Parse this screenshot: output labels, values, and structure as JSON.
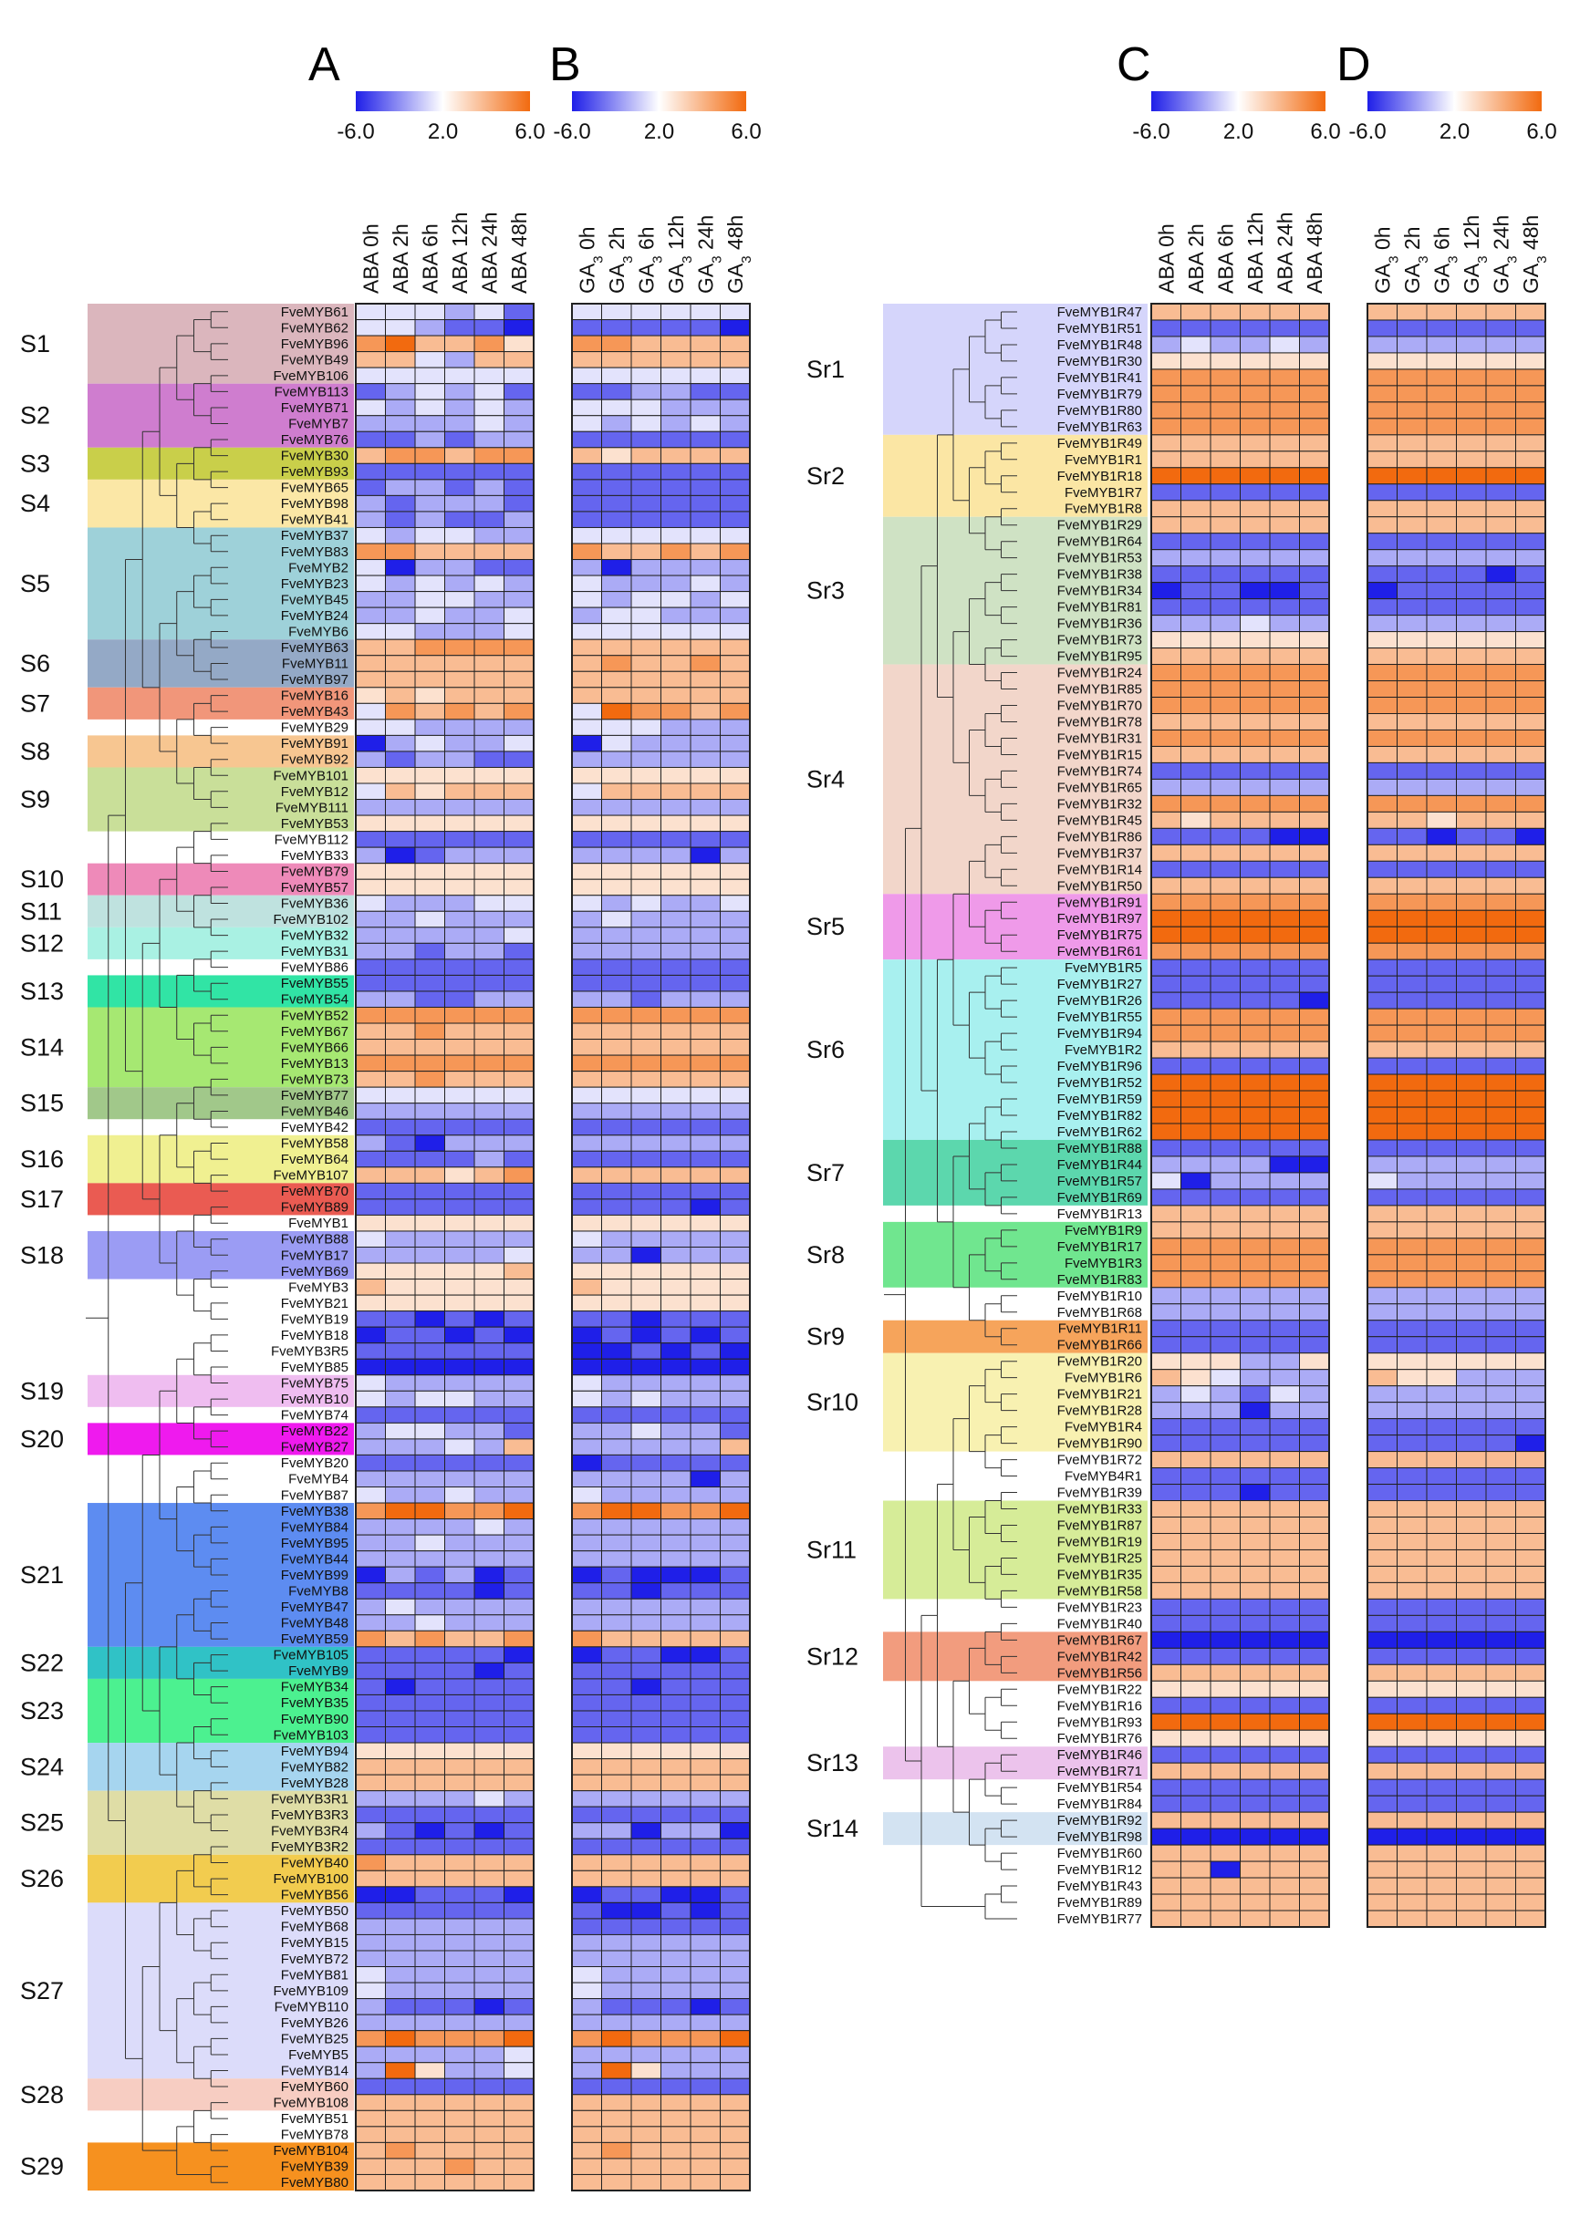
{
  "figure": {
    "panel_labels": [
      "A",
      "B",
      "C",
      "D"
    ],
    "legend_ticks": [
      "-6.0",
      "2.0",
      "6.0"
    ],
    "colors": {
      "low": "#1f1fe8",
      "mid": "#ffffff",
      "high": "#f26a0f",
      "missing": "#7f7f7f",
      "grid": "#222222"
    }
  },
  "chart_data": {
    "type": "heatmap",
    "scale": {
      "min": -6.0,
      "mid": 2.0,
      "max": 6.0
    },
    "left": {
      "row_labels": [
        "FveMYB61",
        "FveMYB62",
        "FveMYB96",
        "FveMYB49",
        "FveMYB106",
        "FveMYB113",
        "FveMYB71",
        "FveMYB7",
        "FveMYB76",
        "FveMYB30",
        "FveMYB93",
        "FveMYB65",
        "FveMYB98",
        "FveMYB41",
        "FveMYB37",
        "FveMYB83",
        "FveMYB2",
        "FveMYB23",
        "FveMYB45",
        "FveMYB24",
        "FveMYB6",
        "FveMYB63",
        "FveMYB11",
        "FveMYB97",
        "FveMYB16",
        "FveMYB43",
        "FveMYB29",
        "FveMYB91",
        "FveMYB92",
        "FveMYB101",
        "FveMYB12",
        "FveMYB111",
        "FveMYB53",
        "FveMYB112",
        "FveMYB33",
        "FveMYB79",
        "FveMYB57",
        "FveMYB36",
        "FveMYB102",
        "FveMYB32",
        "FveMYB31",
        "FveMYB86",
        "FveMYB55",
        "FveMYB54",
        "FveMYB52",
        "FveMYB67",
        "FveMYB66",
        "FveMYB13",
        "FveMYB73",
        "FveMYB77",
        "FveMYB46",
        "FveMYB42",
        "FveMYB58",
        "FveMYB64",
        "FveMYB107",
        "FveMYB70",
        "FveMYB89",
        "FveMYB1",
        "FveMYB88",
        "FveMYB17",
        "FveMYB69",
        "FveMYB3",
        "FveMYB21",
        "FveMYB19",
        "FveMYB18",
        "FveMYB3R5",
        "FveMYB85",
        "FveMYB75",
        "FveMYB10",
        "FveMYB74",
        "FveMYB22",
        "FveMYB27",
        "FveMYB20",
        "FveMYB4",
        "FveMYB87",
        "FveMYB38",
        "FveMYB84",
        "FveMYB95",
        "FveMYB44",
        "FveMYB99",
        "FveMYB8",
        "FveMYB47",
        "FveMYB48",
        "FveMYB59",
        "FveMYB105",
        "FveMYB9",
        "FveMYB34",
        "FveMYB35",
        "FveMYB90",
        "FveMYB103",
        "FveMYB94",
        "FveMYB82",
        "FveMYB28",
        "FveMYB3R1",
        "FveMYB3R3",
        "FveMYB3R4",
        "FveMYB3R2",
        "FveMYB40",
        "FveMYB100",
        "FveMYB56",
        "FveMYB50",
        "FveMYB68",
        "FveMYB15",
        "FveMYB72",
        "FveMYB81",
        "FveMYB109",
        "FveMYB110",
        "FveMYB26",
        "FveMYB25",
        "FveMYB5",
        "FveMYB14",
        "FveMYB60",
        "FveMYB108",
        "FveMYB51",
        "FveMYB78",
        "FveMYB104",
        "FveMYB39",
        "FveMYB80"
      ],
      "groups": [
        {
          "name": "S1",
          "start": 0,
          "end": 4,
          "color": "#dbb6bd"
        },
        {
          "name": "S2",
          "start": 5,
          "end": 8,
          "color": "#cf7dcf"
        },
        {
          "name": "S3",
          "start": 9,
          "end": 10,
          "color": "#c9cf4a"
        },
        {
          "name": "S4",
          "start": 11,
          "end": 13,
          "color": "#fbe7a6"
        },
        {
          "name": "S5",
          "start": 14,
          "end": 20,
          "color": "#9ed1d9"
        },
        {
          "name": "S6",
          "start": 21,
          "end": 23,
          "color": "#94a9c6"
        },
        {
          "name": "S7",
          "start": 24,
          "end": 25,
          "color": "#f1967a"
        },
        {
          "name": "S8",
          "start": 27,
          "end": 28,
          "color": "#f7c691"
        },
        {
          "name": "S9",
          "start": 29,
          "end": 32,
          "color": "#c9df99"
        },
        {
          "name": "S10",
          "start": 35,
          "end": 36,
          "color": "#ee8ab9"
        },
        {
          "name": "S11",
          "start": 37,
          "end": 38,
          "color": "#bfe2df"
        },
        {
          "name": "S12",
          "start": 39,
          "end": 40,
          "color": "#a9f1e3"
        },
        {
          "name": "S13",
          "start": 42,
          "end": 43,
          "color": "#31e4a5"
        },
        {
          "name": "S14",
          "start": 44,
          "end": 48,
          "color": "#a6e872"
        },
        {
          "name": "S15",
          "start": 49,
          "end": 50,
          "color": "#a1c88a"
        },
        {
          "name": "S16",
          "start": 52,
          "end": 54,
          "color": "#f0f091"
        },
        {
          "name": "S17",
          "start": 55,
          "end": 56,
          "color": "#ea5b52"
        },
        {
          "name": "S18",
          "start": 58,
          "end": 60,
          "color": "#9b9cf4"
        },
        {
          "name": "S19",
          "start": 67,
          "end": 68,
          "color": "#efbdf0"
        },
        {
          "name": "S20",
          "start": 70,
          "end": 71,
          "color": "#ef1aee"
        },
        {
          "name": "S21",
          "start": 75,
          "end": 83,
          "color": "#5d8cf1"
        },
        {
          "name": "S22",
          "start": 84,
          "end": 85,
          "color": "#30c2c6"
        },
        {
          "name": "S23",
          "start": 86,
          "end": 89,
          "color": "#4cf190"
        },
        {
          "name": "S24",
          "start": 90,
          "end": 92,
          "color": "#a6d5ef"
        },
        {
          "name": "S25",
          "start": 93,
          "end": 96,
          "color": "#dfdda6"
        },
        {
          "name": "S26",
          "start": 97,
          "end": 99,
          "color": "#f2cc4f"
        },
        {
          "name": "S27",
          "start": 100,
          "end": 110,
          "color": "#dcdcfa"
        },
        {
          "name": "S28",
          "start": 111,
          "end": 112,
          "color": "#f7cdc2"
        },
        {
          "name": "S29",
          "start": 115,
          "end": 117,
          "color": "#f6911f"
        }
      ],
      "panels": [
        {
          "id": "A",
          "columns": [
            {
              "name": "ABA",
              "time": "0h"
            },
            {
              "name": "ABA",
              "time": "2h"
            },
            {
              "name": "ABA",
              "time": "6h"
            },
            {
              "name": "ABA",
              "time": "12h"
            },
            {
              "name": "ABA",
              "time": "24h"
            },
            {
              "name": "ABA",
              "time": "48h"
            }
          ]
        },
        {
          "id": "B",
          "columns": [
            {
              "name": "GA",
              "sub": "3",
              "time": "0h"
            },
            {
              "name": "GA",
              "sub": "3",
              "time": "2h"
            },
            {
              "name": "GA",
              "sub": "3",
              "time": "6h"
            },
            {
              "name": "GA",
              "sub": "3",
              "time": "12h"
            },
            {
              "name": "GA",
              "sub": "3",
              "time": "24h"
            },
            {
              "name": "GA",
              "sub": "3",
              "time": "48h"
            }
          ]
        }
      ],
      "values_A": "+,+,+,~,+,x/+,+,~,x,x,v/4,5,3,3,4,2/3,3,+,~,3,3/+,+,+,+,+,+/x,~,+,~,+,x/+,~,+,~,+,~/~,~,~,~,+,~/x,x,~,x,~,~/3,4,4,3,4,4/x,x,x,x,x,x/x,~,~,x,~,x/~,x,~,~,~,x/~,x,~,x,x,~/+,~,+,+,~,~/4,4,3,3,3,3/+,v,~,~,x,x/+,~,+,~,+,~/~,~,+,+,~,~/~,~,+,~,~,+/+,+,~,~,~,+/3,3,4,4,4,4/3,3,3,3,3,3/3,3,3,3,3,3/2,3,2,3,3,3/+,4,3,4,3,4/+,+,~,~,~,~/v,~,+,~,~,+/~,x,~,~,x,x/2,2,2,2,2,2/+,3,2,3,3,3/~,~,~,~,~,~/2,2,2,2,2,2/x,x,x,x,x,x/~,v,x,~,~,~/2,2,2,2,2,2/2,2,2,2,2,2/+,~,~,~,+,+/~,~,+,~,~,~/~,~,~,~,~,+/~,~,x,~,~,x/x,x,x,x,x,x/x,x,x,x,x,x/~,~,x,x,~,~/4,4,4,4,4,4/3,3,4,3,3,3/3,3,3,3,3,3/4,4,4,4,4,4/3,3,4,3,3,3/+,+,+,+,+,+/~,~,~,~,~,~/x,x,x,x,x,x/~,x,v,~,~,~/x,x,x,x,~,x/3,3,3,2,3,4/x,x,x,x,x,x/x,x,x,x,x,x/2,2,2,2,2,2/+,~,~,~,~,~/~,~,~,~,~,+/2,2,2,2,2,3/3,2,2,2,2,2/2,2,2,2,2,2/x,x,v,x,v,x/v,x,x,v,x,v/x,x,x,x,x,x/v,v,v,v,v,v/+,~,~,~,~,~/+,~,+,+,~,~/x,x,x,x,x,x/~,+,+,~,~,x/~,~,~,+,~,3/x,x,x,x,x,x/~,~,~,~,~,~/+,~,~,+,~,~/4,5,5,4,4,5/~,~,~,~,+,~/~,~,+,~,~,~/~,~,~,~,~,~/v,~,x,~,v,x/x,x,x,x,v,x/~,+,~,~,~,~/~,~,+,~,~,~/4,3,4,3,3,4/x,x,x,x,x,v/x,x,x,x,v,x/x,v,x,x,x,x/x,x,x,x,x,x/x,x,x,x,x,x/x,x,x,x,x,x/2,2,2,2,2,2/3,3,3,3,3,3/3,3,3,3,3,3/~,~,~,~,+,~/x,x,x,x,x,x/~,x,v,x,v,x/x,x,x,x,x,x/4,3,3,3,3,3/3,3,3,3,3,3/v,v,x,x,x,v/x,x,x,x,x,x/~,~,~,~,~,~/~,~,~,~,~,~/~,~,~,~,~,~/+,~,~,~,~,~/+,~,~,~,~,~/~,x,x,x,v,x/~,~,~,~,~,~/4,5,4,4,4,5/~,~,~,~,~,+/~,5,2,~,~,+/x,x,x,x,x,x/3,3,3,3,3,3/3,3,3,3,3,3/3,3,3,3,3,3/3,4,3,3,3,3/3,3,3,4,3,3/3,3,3,3,3,3",
      "values_B": "+,+,+,+,+,+/x,x,x,x,x,v/4,4,3,3,3,3/3,3,3,3,3,3/+,+,+,+,+,+/x,x,~,~,x,x/+,+,+,~,~,~/+,~,+,~,+,~/x,x,x,x,x,x/3,2,3,3,3,3/x,x,x,x,x,x/x,x,x,x,x,x/x,x,x,x,x,x/x,x,x,x,x,x/+,+,+,+,+,+/4,3,3,4,3,4/~,v,~,~,~,~/+,~,~,~,+,~/+,~,+,+,~,+/~,+,+,~,~,~/+,+,+,+,+,+/3,3,3,3,3,3/3,4,3,3,4,3/3,3,3,3,3,3/3,3,3,3,3,3/+,5,4,4,3,4/+,+,+,~,~,~/v,+,~,~,~,~/~,~,~,~,~,~/2,2,2,2,2,2/+,3,3,3,3,3/~,~,~,~,~,~/2,2,2,2,2,2/x,x,x,x,x,x/~,~,~,~,v,~/2,2,2,2,2,2/2,2,2,2,2,2/+,~,+,~,~,+/~,+,~,~,~,~/~,~,~,~,~,~/~,~,~,~,~,~/x,x,x,x,x,x/x,x,x,x,x,x/~,~,x,~,~,~/4,4,4,4,4,4/3,3,3,3,3,3/3,3,3,3,3,3/4,4,4,4,4,4/3,3,3,3,3,3/+,+,+,+,+,+/~,~,~,~,~,~/x,x,x,x,x,x/~,~,~,~,~,~/x,x,x,x,x,x/3,3,3,3,3,3/x,x,x,x,x,x/x,x,x,x,v,x/2,2,2,2,2,2/+,~,~,~,~,~/~,~,v,~,~,~/2,2,2,2,2,2/3,2,2,2,2,2/2,2,2,2,2,2/x,x,v,x,x,x/v,x,v,x,v,x/v,v,x,v,x,v/v,v,v,v,v,v/+,~,~,~,~,~/+,~,+,~,~,~/x,x,x,x,x,x/~,~,+,~,~,x/~,~,~,~,~,3/v,x,x,x,x,x/~,~,~,~,v,~/+,~,~,~,~,~/4,5,5,4,4,5/~,~,~,~,~,~/~,~,~,~,~,~/~,~,~,~,~,~/v,x,v,v,v,x/x,x,v,x,x,x/~,~,~,~,~,~/~,~,~,~,~,~/4,3,3,3,3,3/v,x,x,v,v,x/x,x,x,x,x,x/x,x,v,x,x,x/x,x,x,x,x,x/x,x,x,x,x,x/x,x,x,x,x,x/2,2,2,2,2,2/3,3,3,3,3,3/3,3,3,3,3,3/~,~,~,~,~,~/x,x,x,x,x,x/~,~,v,~,~,v/x,x,x,x,x,x/3,3,3,3,3,3/3,3,3,3,3,3/v,x,x,v,v,x/x,v,v,x,v,x/x,x,x,x,x,x/~,~,~,~,~,~/~,~,~,~,~,~/+,~,~,~,~,~/+,~,~,~,~,~/~,x,x,x,v,x/~,~,~,~,~,~/4,5,4,4,4,5/~,~,~,~,~,~/~,5,2,~,~,~/x,x,x,x,x,x/3,3,3,3,3,3/3,3,3,3,3,3/3,3,3,3,3,3/3,4,3,3,3,3/3,3,3,3,3,3/3,3,3,3,3,3"
    },
    "right": {
      "row_labels": [
        "FveMYB1R47",
        "FveMYB1R51",
        "FveMYB1R48",
        "FveMYB1R30",
        "FveMYB1R41",
        "FveMYB1R79",
        "FveMYB1R80",
        "FveMYB1R63",
        "FveMYB1R49",
        "FveMYB1R1",
        "FveMYB1R18",
        "FveMYB1R7",
        "FveMYB1R8",
        "FveMYB1R29",
        "FveMYB1R64",
        "FveMYB1R53",
        "FveMYB1R38",
        "FveMYB1R34",
        "FveMYB1R81",
        "FveMYB1R36",
        "FveMYB1R73",
        "FveMYB1R95",
        "FveMYB1R24",
        "FveMYB1R85",
        "FveMYB1R70",
        "FveMYB1R78",
        "FveMYB1R31",
        "FveMYB1R15",
        "FveMYB1R74",
        "FveMYB1R65",
        "FveMYB1R32",
        "FveMYB1R45",
        "FveMYB1R86",
        "FveMYB1R37",
        "FveMYB1R14",
        "FveMYB1R50",
        "FveMYB1R91",
        "FveMYB1R97",
        "FveMYB1R75",
        "FveMYB1R61",
        "FveMYB1R5",
        "FveMYB1R27",
        "FveMYB1R26",
        "FveMYB1R55",
        "FveMYB1R94",
        "FveMYB1R2",
        "FveMYB1R96",
        "FveMYB1R52",
        "FveMYB1R59",
        "FveMYB1R82",
        "FveMYB1R62",
        "FveMYB1R88",
        "FveMYB1R44",
        "FveMYB1R57",
        "FveMYB1R69",
        "FveMYB1R13",
        "FveMYB1R9",
        "FveMYB1R17",
        "FveMYB1R3",
        "FveMYB1R83",
        "FveMYB1R10",
        "FveMYB1R68",
        "FveMYB1R11",
        "FveMYB1R66",
        "FveMYB1R20",
        "FveMYB1R6",
        "FveMYB1R21",
        "FveMYB1R28",
        "FveMYB1R4",
        "FveMYB1R90",
        "FveMYB1R72",
        "FveMYB4R1",
        "FveMYB1R39",
        "FveMYB1R33",
        "FveMYB1R87",
        "FveMYB1R19",
        "FveMYB1R25",
        "FveMYB1R35",
        "FveMYB1R58",
        "FveMYB1R23",
        "FveMYB1R40",
        "FveMYB1R67",
        "FveMYB1R42",
        "FveMYB1R56",
        "FveMYB1R22",
        "FveMYB1R16",
        "FveMYB1R93",
        "FveMYB1R76",
        "FveMYB1R46",
        "FveMYB1R71",
        "FveMYB1R54",
        "FveMYB1R84",
        "FveMYB1R92",
        "FveMYB1R98",
        "FveMYB1R60",
        "FveMYB1R12",
        "FveMYB1R43",
        "FveMYB1R89",
        "FveMYB1R77"
      ],
      "groups": [
        {
          "name": "Sr1",
          "start": 0,
          "end": 7,
          "color": "#d5d5fb"
        },
        {
          "name": "Sr2",
          "start": 8,
          "end": 12,
          "color": "#fbe6a4"
        },
        {
          "name": "Sr3",
          "start": 13,
          "end": 21,
          "color": "#cfe2c4"
        },
        {
          "name": "Sr4",
          "start": 22,
          "end": 35,
          "color": "#f2d6ca"
        },
        {
          "name": "Sr5",
          "start": 36,
          "end": 39,
          "color": "#ef9ae9"
        },
        {
          "name": "Sr6",
          "start": 40,
          "end": 50,
          "color": "#a8f0ef"
        },
        {
          "name": "Sr7",
          "start": 51,
          "end": 54,
          "color": "#5cd7ad"
        },
        {
          "name": "Sr8",
          "start": 56,
          "end": 59,
          "color": "#70e68f"
        },
        {
          "name": "Sr9",
          "start": 62,
          "end": 63,
          "color": "#f6a45b"
        },
        {
          "name": "Sr10",
          "start": 64,
          "end": 69,
          "color": "#f8f1b1"
        },
        {
          "name": "Sr11",
          "start": 73,
          "end": 78,
          "color": "#d6ec98"
        },
        {
          "name": "Sr12",
          "start": 81,
          "end": 83,
          "color": "#f29c7e"
        },
        {
          "name": "Sr13",
          "start": 88,
          "end": 89,
          "color": "#ecc3ec"
        },
        {
          "name": "Sr14",
          "start": 92,
          "end": 93,
          "color": "#d3e3f2"
        }
      ],
      "panels": [
        {
          "id": "C",
          "columns": [
            {
              "name": "ABA",
              "time": "0h"
            },
            {
              "name": "ABA",
              "time": "2h"
            },
            {
              "name": "ABA",
              "time": "6h"
            },
            {
              "name": "ABA",
              "time": "12h"
            },
            {
              "name": "ABA",
              "time": "24h"
            },
            {
              "name": "ABA",
              "time": "48h"
            }
          ]
        },
        {
          "id": "D",
          "columns": [
            {
              "name": "GA",
              "sub": "3",
              "time": "0h"
            },
            {
              "name": "GA",
              "sub": "3",
              "time": "2h"
            },
            {
              "name": "GA",
              "sub": "3",
              "time": "6h"
            },
            {
              "name": "GA",
              "sub": "3",
              "time": "12h"
            },
            {
              "name": "GA",
              "sub": "3",
              "time": "24h"
            },
            {
              "name": "GA",
              "sub": "3",
              "time": "48h"
            }
          ]
        }
      ],
      "values_C": "3,3,3,3,3,3/x,x,x,x,x,x/~,+,~,~,+,~/2,2,2,2,2,2/4,4,4,4,4,4/4,4,4,4,4,4/4,4,4,4,4,4/4,4,4,4,4,4/3,3,3,3,3,3/3,3,3,3,3,3/5,5,5,5,5,5/x,x,x,x,x,x/3,3,3,3,3,3/3,3,3,3,3,3/x,x,x,x,x,x/~,~,~,~,~,~/x,x,x,x,x,x/v,x,x,v,v,x/x,x,x,x,x,x/~,~,~,+,~,~/2,2,2,2,2,2/3,3,3,3,3,3/4,4,4,4,4,4/4,4,4,4,4,4/4,4,4,4,4,4/3,3,3,3,3,3/4,4,4,4,4,4/3,3,3,3,3,3/x,x,x,x,x,x/~,~,~,~,~,~/4,4,4,4,4,4/3,2,3,3,3,3/x,x,x,x,v,v/3,3,3,3,3,3/x,x,x,x,x,x/3,3,3,3,3,3/4,4,4,4,4,4/5,5,5,5,5,5/5,5,5,5,5,5/4,4,4,4,4,4/x,x,x,x,x,x/x,x,x,x,x,x/x,x,x,x,x,v/4,4,4,4,4,4/4,4,4,4,4,4/3,3,3,3,3,3/x,x,x,x,x,x/5,5,5,5,5,5/5,5,5,5,5,5/5,5,5,5,5,5/5,5,5,5,5,5/x,x,x,x,x,x/~,~,~,~,v,v/+,v,~,~,~,~/x,x,x,x,x,x/3,3,3,3,3,3/3,3,3,3,3,3/4,4,4,4,4,4/4,4,4,4,4,4/4,4,4,4,4,4/~,~,~,~,~,~/~,~,~,~,~,~/x,x,x,x,x,x/x,x,x,x,x,x/2,2,2,~,~,2/3,2,+,~,~,~/~,+,~,x,+,~/~,~,~,v,~,~/x,x,x,x,x,x/x,x,x,x,x,x/3,3,3,3,3,3/x,x,x,x,x,x/x,x,x,v,x,x/3,3,3,3,3,3/3,3,3,3,3,3/3,3,3,3,3,3/3,3,3,3,3,3/3,3,3,3,3,3/3,3,3,3,3,3/x,x,x,x,x,x/x,x,x,x,x,x/v,v,v,v,v,v/x,x,x,x,x,x/3,3,3,3,3,3/2,2,2,2,2,2/x,x,x,x,x,x/5,5,5,5,5,5/2,2,2,2,2,2/x,x,x,x,x,x/3,3,3,3,3,3/x,x,x,x,x,x/x,x,x,x,x,x/3,3,3,3,3,3/v,v,v,v,v,v/3,3,3,3,3,3/3,3,v,3,3,3/3,3,3,3,3,3/3,3,3,3,3,3/3,3,3,3,3,3",
      "values_D": "3,3,3,3,3,3/x,x,x,x,x,x/~,~,~,~,~,~/2,2,2,2,2,2/4,4,4,4,4,4/4,4,4,4,4,4/4,4,4,4,4,4/4,4,4,4,4,4/3,3,3,3,3,3/3,3,3,3,3,3/5,5,5,5,5,5/x,x,x,x,x,x/3,3,3,3,3,3/3,3,3,3,3,3/x,x,x,x,x,x/~,~,~,~,~,~/x,x,x,x,v,x/v,x,x,x,x,x/x,x,x,x,x,x/~,~,~,~,~,~/2,2,2,2,2,2/3,3,3,3,3,3/4,4,4,4,4,4/4,4,4,4,4,4/4,4,4,4,4,4/3,3,3,3,3,3/4,4,4,4,4,4/3,3,3,3,3,3/x,x,x,x,x,x/~,~,~,~,~,~/4,4,4,4,4,4/3,3,2,3,3,3/x,x,v,x,x,v/3,3,3,3,3,3/x,x,x,x,x,x/3,3,3,3,3,3/4,4,4,4,4,4/5,5,5,5,5,5/5,5,5,5,5,5/4,4,4,4,4,4/x,x,x,x,x,x/x,x,x,x,x,x/x,x,x,x,x,x/4,4,4,4,4,4/4,4,4,4,4,4/3,3,3,3,3,3/x,x,x,x,x,x/5,5,5,5,5,5/5,5,5,5,5,5/5,5,5,5,5,5/5,5,5,5,5,5/x,x,x,x,x,x/~,~,~,~,~,~/+,~,~,~,~,~/x,x,x,x,x,x/3,3,3,3,3,3/3,3,3,3,3,3/4,4,4,4,4,4/4,4,4,4,4,4/4,4,4,4,4,4/~,~,~,~,~,~/~,~,~,~,~,~/x,x,x,x,x,x/x,x,x,x,x,x/2,2,2,2,2,2/3,2,2,~,~,~/~,~,~,~,~,~/~,~,~,~,~,~/x,x,x,x,x,x/x,x,x,x,x,v/3,3,3,3,3,3/x,x,x,x,x,x/x,x,x,x,x,x/3,3,3,3,3,3/3,3,3,3,3,3/3,3,3,3,3,3/3,3,3,3,3,3/3,3,3,3,3,3/3,3,3,3,3,3/x,x,x,x,x,x/x,x,x,x,x,x/v,v,v,v,v,v/x,x,x,x,x,x/3,3,3,3,3,3/2,2,2,2,2,2/x,x,x,x,x,x/5,5,5,5,5,5/2,2,2,2,2,2/x,x,x,x,x,x/3,3,3,3,3,3/x,x,x,x,x,x/x,x,x,x,x,x/3,3,3,3,3,3/v,v,v,v,v,v/3,3,3,3,3,3/3,3,3,3,3,3/3,3,3,3,3,3/3,3,3,3,3,3/3,3,3,3,3,3"
    }
  }
}
